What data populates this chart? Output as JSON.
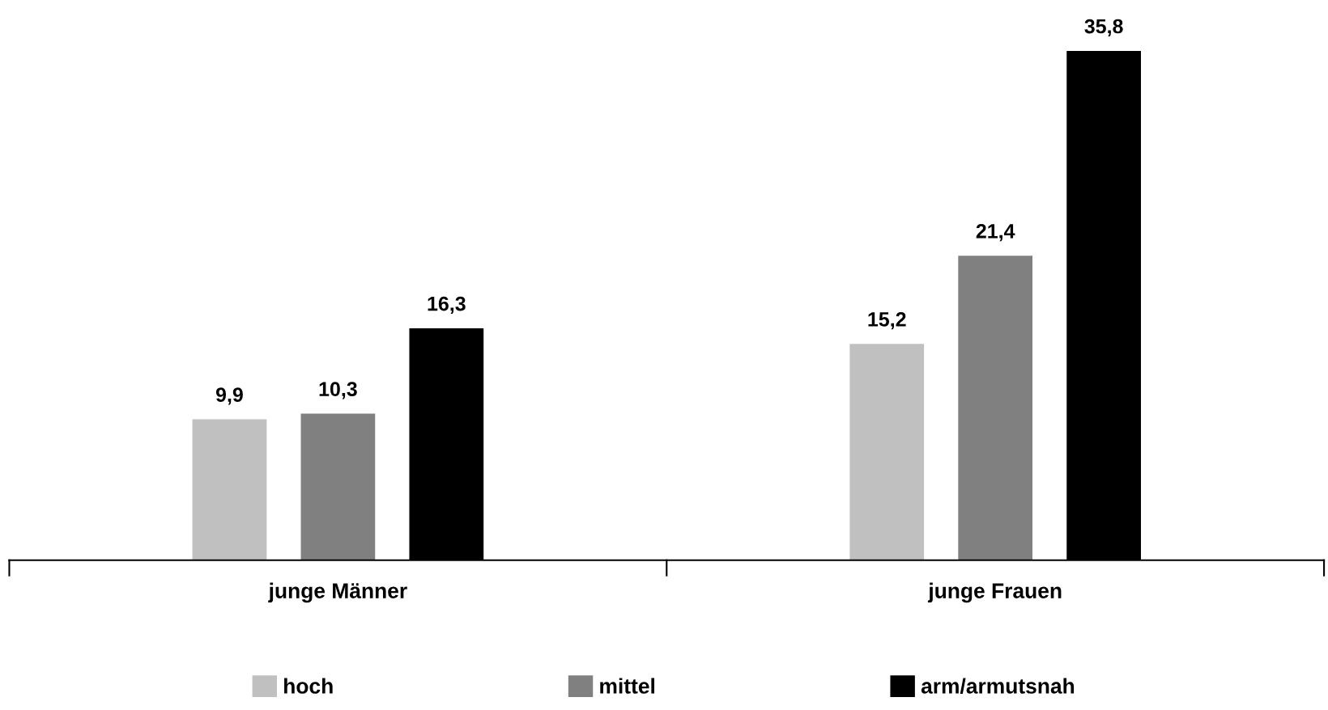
{
  "chart_data": {
    "type": "bar",
    "categories": [
      "junge Männer",
      "junge Frauen"
    ],
    "series": [
      {
        "name": "hoch",
        "color": "#c0c0c0",
        "values": [
          9.9,
          15.2
        ],
        "value_labels": [
          "9,9",
          "15,2"
        ]
      },
      {
        "name": "mittel",
        "color": "#808080",
        "values": [
          10.3,
          21.4
        ],
        "value_labels": [
          "10,3",
          "21,4"
        ]
      },
      {
        "name": "arm/armutsnah",
        "color": "#000000",
        "values": [
          16.3,
          35.8
        ],
        "value_labels": [
          "16,3",
          "35,8"
        ]
      }
    ],
    "legend": "bottom",
    "grid": false
  }
}
